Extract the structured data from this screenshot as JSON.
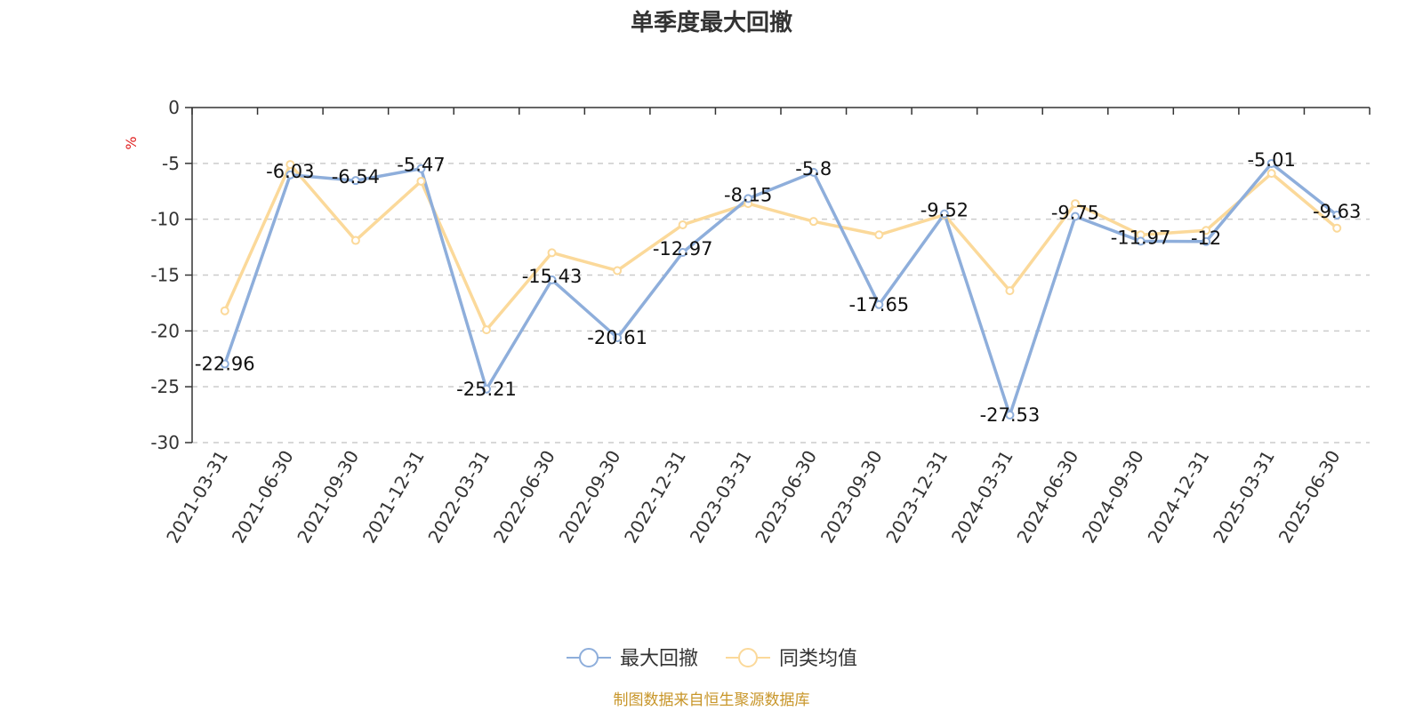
{
  "chart_data": {
    "type": "line",
    "title": "单季度最大回撤",
    "ylabel": "%",
    "ylim": [
      -30,
      0
    ],
    "yticks": [
      0,
      -5,
      -10,
      -15,
      -20,
      -25,
      -30
    ],
    "grid": true,
    "legend_position": "bottom",
    "categories": [
      "2021-03-31",
      "2021-06-30",
      "2021-09-30",
      "2021-12-31",
      "2022-03-31",
      "2022-06-30",
      "2022-09-30",
      "2022-12-31",
      "2023-03-31",
      "2023-06-30",
      "2023-09-30",
      "2023-12-31",
      "2024-03-31",
      "2024-06-30",
      "2024-09-30",
      "2024-12-31",
      "2025-03-31",
      "2025-06-30"
    ],
    "series": [
      {
        "name": "最大回撤",
        "color": "#8eaedb",
        "values": [
          -22.96,
          -6.03,
          -6.54,
          -5.47,
          -25.21,
          -15.43,
          -20.61,
          -12.97,
          -8.15,
          -5.8,
          -17.65,
          -9.52,
          -27.53,
          -9.75,
          -11.97,
          -12,
          -5.01,
          -9.63
        ],
        "labels": [
          "-22.96",
          "-6.03",
          "-6.54",
          "-5.47",
          "-25.21",
          "-15.43",
          "-20.61",
          "-12.97",
          "-8.15",
          "-5.8",
          "-17.65",
          "-9.52",
          "-27.53",
          "-9.75",
          "-11.97",
          "-12",
          "-5.01",
          "-9.63"
        ]
      },
      {
        "name": "同类均值",
        "color": "#fbd99a",
        "values": [
          -18.2,
          -5.1,
          -11.9,
          -6.6,
          -19.9,
          -13.0,
          -14.6,
          -10.5,
          -8.6,
          -10.2,
          -11.4,
          -9.6,
          -16.4,
          -8.6,
          -11.4,
          -11.0,
          -5.9,
          -10.8
        ]
      }
    ],
    "source": "制图数据来自恒生聚源数据库"
  }
}
